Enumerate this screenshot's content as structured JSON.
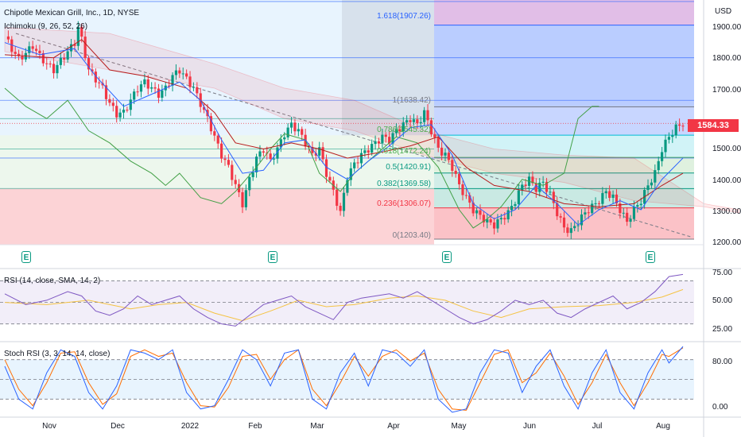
{
  "header": {
    "title": "Chipotle Mexican Grill, Inc., 1D, NYSE",
    "indicator": "Ichimoku (9, 26, 52, 26)",
    "currency": "USD"
  },
  "price_badge": "1584.33",
  "colors": {
    "up": "#089981",
    "down": "#f23645",
    "rsi": "#7e57c2",
    "rsi_ma": "#f5c343",
    "stoch_k": "#2962ff",
    "stoch_d": "#ff6d00",
    "tenkan": "#2962ff",
    "kijun": "#b71c1c",
    "lagging": "#43a047"
  },
  "fib_labels": [
    {
      "text": "1.618(1907.26)",
      "color": "#2962ff"
    },
    {
      "text": "1(1638.42)",
      "color": "#787b86"
    },
    {
      "text": "0.786(1545.32)",
      "color": "#4caf50"
    },
    {
      "text": "0.618(1472.24)",
      "color": "#4caf50"
    },
    {
      "text": "0.5(1420.91)",
      "color": "#089981"
    },
    {
      "text": "0.382(1369.58)",
      "color": "#089981"
    },
    {
      "text": "0.236(1306.07)",
      "color": "#f23645"
    },
    {
      "text": "0(1203.40)",
      "color": "#787b86"
    }
  ],
  "earnings_icon": "E",
  "rsi_panel": {
    "title": "RSI (14, close, SMA, 14, 2)",
    "ticks": [
      "75.00",
      "50.00",
      "25.00"
    ]
  },
  "stoch_panel": {
    "title": "Stoch RSI (3, 3, 14, 14, close)",
    "ticks": [
      "80.00",
      "0.00"
    ]
  },
  "chart_data": {
    "type": "candlestick",
    "title": "Chipotle Mexican Grill, Inc., 1D, NYSE",
    "y_axis": {
      "ticks": [
        "1900.00",
        "1800.00",
        "1700.00",
        "1600.00",
        "1500.00",
        "1400.00",
        "1300.00",
        "1200.00"
      ],
      "range": [
        1185,
        1990
      ],
      "unit": "USD"
    },
    "x_axis": {
      "ticks": [
        "Nov",
        "Dec",
        "2022",
        "Feb",
        "Mar",
        "Apr",
        "May",
        "Jun",
        "Jul",
        "Aug"
      ]
    },
    "last_price": 1584.33,
    "fibonacci": [
      {
        "level": 1.618,
        "price": 1907.26
      },
      {
        "level": 1,
        "price": 1638.42
      },
      {
        "level": 0.786,
        "price": 1545.32
      },
      {
        "level": 0.618,
        "price": 1472.24
      },
      {
        "level": 0.5,
        "price": 1420.91
      },
      {
        "level": 0.382,
        "price": 1369.58
      },
      {
        "level": 0.236,
        "price": 1306.07
      },
      {
        "level": 0,
        "price": 1203.4
      }
    ],
    "close_path": [
      [
        0,
        1870
      ],
      [
        2,
        1830
      ],
      [
        4,
        1795
      ],
      [
        6,
        1815
      ],
      [
        8,
        1840
      ],
      [
        10,
        1805
      ],
      [
        12,
        1780
      ],
      [
        14,
        1760
      ],
      [
        16,
        1790
      ],
      [
        18,
        1820
      ],
      [
        20,
        1850
      ],
      [
        21,
        1900
      ],
      [
        22,
        1860
      ],
      [
        24,
        1760
      ],
      [
        26,
        1730
      ],
      [
        28,
        1700
      ],
      [
        30,
        1650
      ],
      [
        32,
        1615
      ],
      [
        34,
        1620
      ],
      [
        36,
        1660
      ],
      [
        38,
        1700
      ],
      [
        40,
        1720
      ],
      [
        42,
        1700
      ],
      [
        44,
        1680
      ],
      [
        46,
        1700
      ],
      [
        48,
        1740
      ],
      [
        50,
        1760
      ],
      [
        52,
        1730
      ],
      [
        54,
        1700
      ],
      [
        56,
        1650
      ],
      [
        58,
        1600
      ],
      [
        60,
        1540
      ],
      [
        62,
        1480
      ],
      [
        64,
        1440
      ],
      [
        66,
        1380
      ],
      [
        68,
        1320
      ],
      [
        70,
        1400
      ],
      [
        72,
        1470
      ],
      [
        74,
        1500
      ],
      [
        76,
        1460
      ],
      [
        78,
        1500
      ],
      [
        80,
        1550
      ],
      [
        82,
        1580
      ],
      [
        84,
        1560
      ],
      [
        86,
        1520
      ],
      [
        88,
        1480
      ],
      [
        90,
        1500
      ],
      [
        92,
        1420
      ],
      [
        94,
        1360
      ],
      [
        96,
        1290
      ],
      [
        98,
        1410
      ],
      [
        100,
        1450
      ],
      [
        102,
        1480
      ],
      [
        104,
        1500
      ],
      [
        106,
        1520
      ],
      [
        108,
        1540
      ],
      [
        110,
        1530
      ],
      [
        112,
        1560
      ],
      [
        114,
        1580
      ],
      [
        116,
        1600
      ],
      [
        118,
        1580
      ],
      [
        120,
        1620
      ],
      [
        122,
        1560
      ],
      [
        124,
        1500
      ],
      [
        126,
        1480
      ],
      [
        128,
        1440
      ],
      [
        130,
        1380
      ],
      [
        132,
        1340
      ],
      [
        134,
        1300
      ],
      [
        136,
        1280
      ],
      [
        138,
        1260
      ],
      [
        140,
        1250
      ],
      [
        142,
        1270
      ],
      [
        144,
        1290
      ],
      [
        146,
        1330
      ],
      [
        148,
        1380
      ],
      [
        150,
        1400
      ],
      [
        152,
        1370
      ],
      [
        154,
        1390
      ],
      [
        156,
        1350
      ],
      [
        158,
        1290
      ],
      [
        160,
        1240
      ],
      [
        162,
        1230
      ],
      [
        164,
        1260
      ],
      [
        166,
        1290
      ],
      [
        168,
        1310
      ],
      [
        170,
        1330
      ],
      [
        172,
        1360
      ],
      [
        174,
        1340
      ],
      [
        176,
        1300
      ],
      [
        178,
        1260
      ],
      [
        180,
        1300
      ],
      [
        182,
        1330
      ],
      [
        184,
        1380
      ],
      [
        186,
        1420
      ],
      [
        188,
        1500
      ],
      [
        190,
        1540
      ],
      [
        192,
        1570
      ],
      [
        194,
        1584
      ]
    ],
    "tenkan_path": [
      [
        0,
        1850
      ],
      [
        10,
        1810
      ],
      [
        20,
        1830
      ],
      [
        26,
        1740
      ],
      [
        34,
        1640
      ],
      [
        42,
        1680
      ],
      [
        50,
        1720
      ],
      [
        56,
        1660
      ],
      [
        62,
        1530
      ],
      [
        68,
        1420
      ],
      [
        74,
        1430
      ],
      [
        80,
        1520
      ],
      [
        86,
        1530
      ],
      [
        92,
        1440
      ],
      [
        98,
        1400
      ],
      [
        104,
        1460
      ],
      [
        110,
        1510
      ],
      [
        116,
        1570
      ],
      [
        122,
        1580
      ],
      [
        128,
        1480
      ],
      [
        134,
        1320
      ],
      [
        140,
        1270
      ],
      [
        146,
        1300
      ],
      [
        152,
        1380
      ],
      [
        158,
        1320
      ],
      [
        164,
        1250
      ],
      [
        170,
        1300
      ],
      [
        176,
        1330
      ],
      [
        182,
        1300
      ],
      [
        188,
        1400
      ],
      [
        194,
        1470
      ]
    ],
    "kijun_path": [
      [
        0,
        1810
      ],
      [
        14,
        1800
      ],
      [
        22,
        1860
      ],
      [
        30,
        1760
      ],
      [
        40,
        1740
      ],
      [
        52,
        1700
      ],
      [
        60,
        1620
      ],
      [
        66,
        1520
      ],
      [
        74,
        1500
      ],
      [
        82,
        1520
      ],
      [
        90,
        1500
      ],
      [
        98,
        1470
      ],
      [
        108,
        1490
      ],
      [
        116,
        1510
      ],
      [
        124,
        1540
      ],
      [
        132,
        1440
      ],
      [
        140,
        1380
      ],
      [
        150,
        1360
      ],
      [
        160,
        1320
      ],
      [
        170,
        1310
      ],
      [
        180,
        1320
      ],
      [
        188,
        1380
      ],
      [
        194,
        1420
      ]
    ],
    "lagging_path": [
      [
        0,
        1700
      ],
      [
        6,
        1640
      ],
      [
        12,
        1600
      ],
      [
        18,
        1660
      ],
      [
        24,
        1560
      ],
      [
        30,
        1520
      ],
      [
        36,
        1460
      ],
      [
        42,
        1420
      ],
      [
        46,
        1380
      ],
      [
        50,
        1420
      ],
      [
        56,
        1340
      ],
      [
        62,
        1320
      ],
      [
        66,
        1360
      ],
      [
        72,
        1440
      ],
      [
        76,
        1500
      ],
      [
        80,
        1550
      ],
      [
        86,
        1530
      ],
      [
        90,
        1420
      ],
      [
        96,
        1360
      ],
      [
        100,
        1420
      ],
      [
        106,
        1480
      ],
      [
        112,
        1540
      ],
      [
        118,
        1520
      ],
      [
        124,
        1440
      ],
      [
        130,
        1300
      ],
      [
        134,
        1240
      ],
      [
        138,
        1270
      ],
      [
        142,
        1310
      ],
      [
        148,
        1400
      ],
      [
        154,
        1380
      ],
      [
        160,
        1420
      ],
      [
        164,
        1600
      ],
      [
        168,
        1640
      ],
      [
        170,
        1640
      ]
    ],
    "rsi": {
      "range": [
        15,
        80
      ],
      "levels": [
        70,
        50,
        30
      ],
      "values": [
        [
          0,
          58
        ],
        [
          6,
          48
        ],
        [
          12,
          52
        ],
        [
          18,
          60
        ],
        [
          22,
          56
        ],
        [
          26,
          42
        ],
        [
          30,
          38
        ],
        [
          34,
          44
        ],
        [
          38,
          56
        ],
        [
          42,
          48
        ],
        [
          46,
          52
        ],
        [
          50,
          56
        ],
        [
          54,
          44
        ],
        [
          58,
          36
        ],
        [
          62,
          30
        ],
        [
          66,
          28
        ],
        [
          70,
          38
        ],
        [
          74,
          48
        ],
        [
          78,
          52
        ],
        [
          82,
          56
        ],
        [
          86,
          46
        ],
        [
          90,
          40
        ],
        [
          94,
          34
        ],
        [
          98,
          50
        ],
        [
          102,
          54
        ],
        [
          106,
          56
        ],
        [
          110,
          58
        ],
        [
          114,
          54
        ],
        [
          118,
          60
        ],
        [
          122,
          52
        ],
        [
          126,
          44
        ],
        [
          130,
          36
        ],
        [
          134,
          30
        ],
        [
          138,
          34
        ],
        [
          142,
          42
        ],
        [
          146,
          52
        ],
        [
          150,
          48
        ],
        [
          154,
          52
        ],
        [
          158,
          40
        ],
        [
          162,
          36
        ],
        [
          166,
          44
        ],
        [
          170,
          50
        ],
        [
          174,
          56
        ],
        [
          178,
          44
        ],
        [
          182,
          50
        ],
        [
          186,
          60
        ],
        [
          190,
          74
        ],
        [
          194,
          76
        ]
      ],
      "ma": [
        [
          0,
          50
        ],
        [
          12,
          48
        ],
        [
          24,
          52
        ],
        [
          36,
          44
        ],
        [
          44,
          48
        ],
        [
          52,
          50
        ],
        [
          60,
          40
        ],
        [
          68,
          33
        ],
        [
          76,
          42
        ],
        [
          84,
          52
        ],
        [
          92,
          46
        ],
        [
          100,
          48
        ],
        [
          110,
          54
        ],
        [
          118,
          56
        ],
        [
          126,
          52
        ],
        [
          134,
          42
        ],
        [
          142,
          36
        ],
        [
          150,
          44
        ],
        [
          160,
          46
        ],
        [
          170,
          47
        ],
        [
          180,
          50
        ],
        [
          188,
          55
        ],
        [
          194,
          62
        ]
      ]
    },
    "stoch_rsi": {
      "range": [
        -5,
        105
      ],
      "levels": [
        80,
        50,
        20
      ],
      "k": [
        [
          0,
          70
        ],
        [
          4,
          20
        ],
        [
          8,
          5
        ],
        [
          12,
          60
        ],
        [
          16,
          95
        ],
        [
          20,
          85
        ],
        [
          24,
          30
        ],
        [
          28,
          5
        ],
        [
          32,
          40
        ],
        [
          36,
          95
        ],
        [
          40,
          90
        ],
        [
          44,
          80
        ],
        [
          48,
          95
        ],
        [
          52,
          30
        ],
        [
          56,
          5
        ],
        [
          60,
          10
        ],
        [
          64,
          50
        ],
        [
          68,
          95
        ],
        [
          72,
          80
        ],
        [
          76,
          40
        ],
        [
          80,
          90
        ],
        [
          84,
          95
        ],
        [
          88,
          20
        ],
        [
          92,
          5
        ],
        [
          96,
          60
        ],
        [
          100,
          90
        ],
        [
          104,
          40
        ],
        [
          108,
          95
        ],
        [
          112,
          90
        ],
        [
          116,
          70
        ],
        [
          120,
          95
        ],
        [
          124,
          20
        ],
        [
          128,
          0
        ],
        [
          132,
          5
        ],
        [
          136,
          60
        ],
        [
          140,
          95
        ],
        [
          144,
          90
        ],
        [
          148,
          30
        ],
        [
          152,
          70
        ],
        [
          156,
          95
        ],
        [
          160,
          40
        ],
        [
          164,
          5
        ],
        [
          168,
          60
        ],
        [
          172,
          95
        ],
        [
          176,
          30
        ],
        [
          180,
          5
        ],
        [
          184,
          60
        ],
        [
          188,
          95
        ],
        [
          190,
          75
        ],
        [
          194,
          100
        ]
      ],
      "d": [
        [
          0,
          80
        ],
        [
          4,
          35
        ],
        [
          8,
          10
        ],
        [
          12,
          45
        ],
        [
          16,
          90
        ],
        [
          20,
          92
        ],
        [
          24,
          45
        ],
        [
          28,
          12
        ],
        [
          32,
          28
        ],
        [
          36,
          85
        ],
        [
          40,
          95
        ],
        [
          44,
          85
        ],
        [
          48,
          90
        ],
        [
          52,
          45
        ],
        [
          56,
          10
        ],
        [
          60,
          8
        ],
        [
          64,
          38
        ],
        [
          68,
          85
        ],
        [
          72,
          88
        ],
        [
          76,
          50
        ],
        [
          80,
          80
        ],
        [
          84,
          95
        ],
        [
          88,
          35
        ],
        [
          92,
          10
        ],
        [
          96,
          45
        ],
        [
          100,
          85
        ],
        [
          104,
          55
        ],
        [
          108,
          85
        ],
        [
          112,
          95
        ],
        [
          116,
          78
        ],
        [
          120,
          90
        ],
        [
          124,
          35
        ],
        [
          128,
          5
        ],
        [
          132,
          3
        ],
        [
          136,
          45
        ],
        [
          140,
          88
        ],
        [
          144,
          95
        ],
        [
          148,
          45
        ],
        [
          152,
          60
        ],
        [
          156,
          90
        ],
        [
          160,
          55
        ],
        [
          164,
          12
        ],
        [
          168,
          45
        ],
        [
          172,
          88
        ],
        [
          176,
          45
        ],
        [
          180,
          10
        ],
        [
          184,
          45
        ],
        [
          188,
          88
        ],
        [
          190,
          85
        ],
        [
          194,
          98
        ]
      ]
    }
  }
}
